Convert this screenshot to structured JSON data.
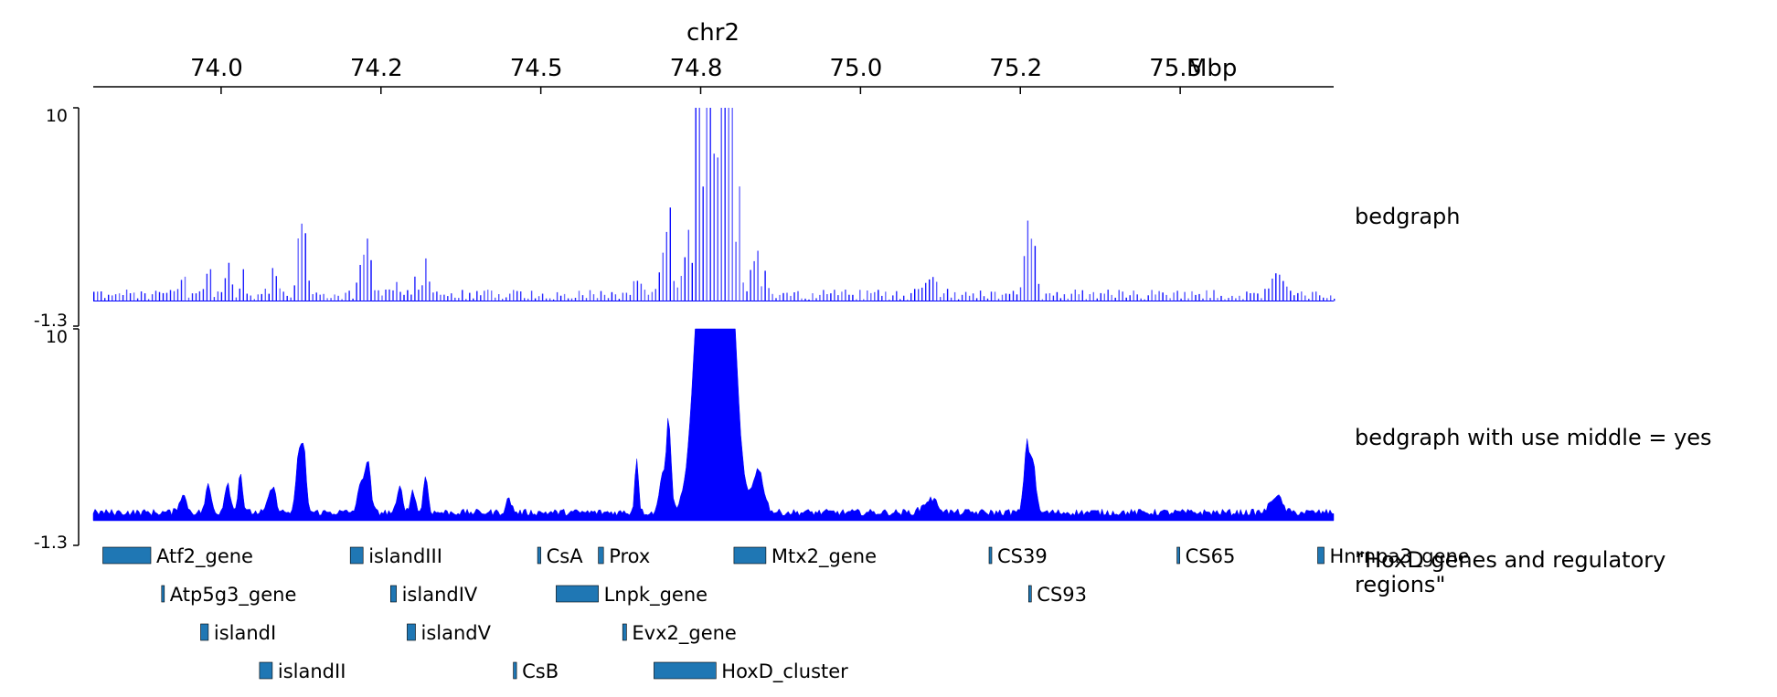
{
  "axis": {
    "chromosome": "chr2",
    "unit": "Mbp",
    "ticks": [
      {
        "value": 73.95,
        "label": "74.0"
      },
      {
        "value": 74.2,
        "label": "74.2"
      },
      {
        "value": 74.45,
        "label": "74.5"
      },
      {
        "value": 74.7,
        "label": "74.8"
      },
      {
        "value": 74.95,
        "label": "75.0"
      },
      {
        "value": 75.2,
        "label": "75.2"
      },
      {
        "value": 75.45,
        "label": "75.5"
      }
    ]
  },
  "chart_data": {
    "type": "area",
    "x_range": [
      73.75,
      75.69
    ],
    "colors": {
      "signal": "#0000ff",
      "gene": "#1f77b4",
      "gene_edge": "#000000"
    },
    "tracks": [
      {
        "label": "bedgraph",
        "ymin_label": "-1.3",
        "ymax_label": "10",
        "ylim": [
          -1.3,
          10
        ],
        "style": "bars",
        "peaks": [
          {
            "x": 73.89,
            "h": 0.9,
            "w": 0.008
          },
          {
            "x": 73.93,
            "h": 1.4,
            "w": 0.006
          },
          {
            "x": 73.96,
            "h": 1.6,
            "w": 0.006
          },
          {
            "x": 73.98,
            "h": 2.1,
            "w": 0.005
          },
          {
            "x": 74.03,
            "h": 1.3,
            "w": 0.008
          },
          {
            "x": 74.072,
            "h": 3.2,
            "w": 0.006
          },
          {
            "x": 74.08,
            "h": 2.8,
            "w": 0.005
          },
          {
            "x": 74.18,
            "h": 2.3,
            "w": 0.006
          },
          {
            "x": 74.17,
            "h": 1.6,
            "w": 0.008
          },
          {
            "x": 74.23,
            "h": 1.3,
            "w": 0.006
          },
          {
            "x": 74.25,
            "h": 1.2,
            "w": 0.005
          },
          {
            "x": 74.27,
            "h": 1.9,
            "w": 0.005
          },
          {
            "x": 74.4,
            "h": 0.7,
            "w": 0.006
          },
          {
            "x": 74.6,
            "h": 2.9,
            "w": 0.004
          },
          {
            "x": 74.65,
            "h": 4.8,
            "w": 0.005
          },
          {
            "x": 74.64,
            "h": 2.1,
            "w": 0.006
          },
          {
            "x": 74.71,
            "h": 12.0,
            "w": 0.02
          },
          {
            "x": 74.74,
            "h": 12.0,
            "w": 0.018
          },
          {
            "x": 74.72,
            "h": 12.0,
            "w": 0.03
          },
          {
            "x": 74.79,
            "h": 2.2,
            "w": 0.012
          },
          {
            "x": 75.06,
            "h": 0.7,
            "w": 0.015
          },
          {
            "x": 75.21,
            "h": 3.5,
            "w": 0.006
          },
          {
            "x": 75.22,
            "h": 2.6,
            "w": 0.006
          },
          {
            "x": 75.6,
            "h": 0.9,
            "w": 0.012
          }
        ]
      },
      {
        "label": "bedgraph with use middle = yes",
        "ymin_label": "-1.3",
        "ymax_label": "10",
        "ylim": [
          -1.3,
          10
        ],
        "style": "area",
        "peaks": [
          {
            "x": 73.89,
            "h": 0.9,
            "w": 0.008
          },
          {
            "x": 73.93,
            "h": 1.4,
            "w": 0.006
          },
          {
            "x": 73.96,
            "h": 1.6,
            "w": 0.006
          },
          {
            "x": 73.98,
            "h": 2.1,
            "w": 0.005
          },
          {
            "x": 74.03,
            "h": 1.3,
            "w": 0.008
          },
          {
            "x": 74.072,
            "h": 3.2,
            "w": 0.006
          },
          {
            "x": 74.08,
            "h": 2.8,
            "w": 0.005
          },
          {
            "x": 74.18,
            "h": 2.3,
            "w": 0.006
          },
          {
            "x": 74.17,
            "h": 1.6,
            "w": 0.008
          },
          {
            "x": 74.23,
            "h": 1.3,
            "w": 0.006
          },
          {
            "x": 74.25,
            "h": 1.2,
            "w": 0.005
          },
          {
            "x": 74.27,
            "h": 1.9,
            "w": 0.005
          },
          {
            "x": 74.4,
            "h": 0.7,
            "w": 0.006
          },
          {
            "x": 74.6,
            "h": 2.9,
            "w": 0.004
          },
          {
            "x": 74.65,
            "h": 4.8,
            "w": 0.005
          },
          {
            "x": 74.64,
            "h": 2.1,
            "w": 0.006
          },
          {
            "x": 74.71,
            "h": 12.0,
            "w": 0.02
          },
          {
            "x": 74.74,
            "h": 12.0,
            "w": 0.018
          },
          {
            "x": 74.72,
            "h": 12.0,
            "w": 0.03
          },
          {
            "x": 74.79,
            "h": 2.2,
            "w": 0.012
          },
          {
            "x": 75.06,
            "h": 0.7,
            "w": 0.015
          },
          {
            "x": 75.21,
            "h": 3.5,
            "w": 0.006
          },
          {
            "x": 75.22,
            "h": 2.6,
            "w": 0.006
          },
          {
            "x": 75.6,
            "h": 0.9,
            "w": 0.012
          }
        ]
      }
    ],
    "genes": {
      "label": "\"HoxD genes and regulatory regions\"",
      "label_lines": [
        "\"HoxD genes and regulatory",
        "regions\""
      ],
      "items": [
        {
          "name": "Atf2_gene",
          "start": 73.765,
          "end": 73.84,
          "row": 0
        },
        {
          "name": "islandIII",
          "start": 74.152,
          "end": 74.172,
          "row": 0
        },
        {
          "name": "CsA",
          "start": 74.445,
          "end": 74.45,
          "row": 0
        },
        {
          "name": "Prox",
          "start": 74.54,
          "end": 74.548,
          "row": 0
        },
        {
          "name": "Mtx2_gene",
          "start": 74.752,
          "end": 74.802,
          "row": 0
        },
        {
          "name": "CS39",
          "start": 75.151,
          "end": 75.153,
          "row": 0
        },
        {
          "name": "CS65",
          "start": 75.445,
          "end": 75.447,
          "row": 0
        },
        {
          "name": "Hnrnpa3_gene",
          "start": 75.665,
          "end": 75.675,
          "row": 0
        },
        {
          "name": "Atp5g3_gene",
          "start": 73.857,
          "end": 73.86,
          "row": 1
        },
        {
          "name": "islandIV",
          "start": 74.215,
          "end": 74.224,
          "row": 1
        },
        {
          "name": "Lnpk_gene",
          "start": 74.474,
          "end": 74.54,
          "row": 1
        },
        {
          "name": "CS93",
          "start": 75.213,
          "end": 75.215,
          "row": 1
        },
        {
          "name": "islandI",
          "start": 73.918,
          "end": 73.93,
          "row": 2
        },
        {
          "name": "islandV",
          "start": 74.241,
          "end": 74.254,
          "row": 2
        },
        {
          "name": "Evx2_gene",
          "start": 74.578,
          "end": 74.584,
          "row": 2
        },
        {
          "name": "islandII",
          "start": 74.01,
          "end": 74.03,
          "row": 3
        },
        {
          "name": "CsB",
          "start": 74.407,
          "end": 74.412,
          "row": 3
        },
        {
          "name": "HoxD_cluster",
          "start": 74.627,
          "end": 74.724,
          "row": 3
        }
      ]
    }
  }
}
